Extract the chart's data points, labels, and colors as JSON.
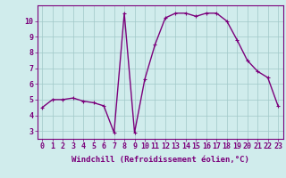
{
  "x": [
    0,
    1,
    2,
    3,
    4,
    5,
    6,
    7,
    8,
    9,
    10,
    11,
    12,
    13,
    14,
    15,
    16,
    17,
    18,
    19,
    20,
    21,
    22,
    23
  ],
  "y": [
    4.5,
    5.0,
    5.0,
    5.1,
    4.9,
    4.8,
    4.6,
    2.9,
    10.5,
    2.9,
    6.3,
    8.5,
    10.2,
    10.5,
    10.5,
    10.3,
    10.5,
    10.5,
    10.0,
    8.8,
    7.5,
    6.8,
    6.4,
    4.6
  ],
  "line_color": "#7B007B",
  "marker": "+",
  "marker_size": 3,
  "background_color": "#d0ecec",
  "grid_color": "#a0c8c8",
  "xlabel": "Windchill (Refroidissement éolien,°C)",
  "xlim_min": -0.5,
  "xlim_max": 23.5,
  "ylim_min": 2.5,
  "ylim_max": 11.0,
  "yticks": [
    3,
    4,
    5,
    6,
    7,
    8,
    9,
    10
  ],
  "xticks": [
    0,
    1,
    2,
    3,
    4,
    5,
    6,
    7,
    8,
    9,
    10,
    11,
    12,
    13,
    14,
    15,
    16,
    17,
    18,
    19,
    20,
    21,
    22,
    23
  ],
  "tick_color": "#7B007B",
  "label_color": "#7B007B",
  "xlabel_fontsize": 6.5,
  "tick_fontsize": 6.0,
  "line_width": 1.0,
  "marker_edge_width": 0.8
}
